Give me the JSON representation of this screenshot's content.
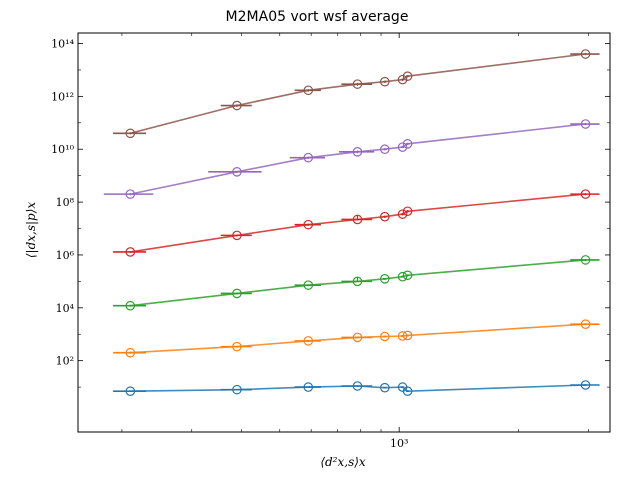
{
  "chart_data": {
    "type": "line",
    "title": "M2MA05 vort wsf average",
    "xlabel": "⟨d²x,s⟩x",
    "ylabel": "⟨|dx,s|p⟩x",
    "xscale": "log",
    "yscale": "log",
    "xlim": [
      155,
      3400
    ],
    "ylim": [
      0.2,
      250000000000000.0
    ],
    "y_ticks": [
      {
        "value": 100,
        "label": "10²"
      },
      {
        "value": 10000,
        "label": "10⁴"
      },
      {
        "value": 1000000,
        "label": "10⁶"
      },
      {
        "value": 100000000,
        "label": "10⁸"
      },
      {
        "value": 10000000000,
        "label": "10¹⁰"
      },
      {
        "value": 1000000000000,
        "label": "10¹²"
      },
      {
        "value": 100000000000000,
        "label": "10¹⁴"
      }
    ],
    "x_ticks": [
      {
        "value": 1000,
        "label": "10³"
      }
    ],
    "grid": false,
    "legend": "none",
    "series": [
      {
        "color": "#1f77b4",
        "x": [
          210,
          390,
          590,
          785,
          920,
          1020,
          1050,
          2950
        ],
        "y": [
          7,
          8,
          10,
          11,
          9.5,
          10,
          7,
          12
        ],
        "xerr": [
          20,
          35,
          45,
          70,
          10,
          10,
          10,
          250
        ],
        "yerr_upper": [
          7.5,
          8.5,
          10.5,
          11.5,
          10,
          10.5,
          7.5,
          13
        ],
        "yerr_lower": [
          6.5,
          7.5,
          9.5,
          10.5,
          9,
          9.5,
          6.5,
          11
        ]
      },
      {
        "color": "#ff7f0e",
        "x": [
          210,
          390,
          590,
          785,
          920,
          1020,
          1050,
          2950
        ],
        "y": [
          200,
          340,
          560,
          760,
          820,
          860,
          900,
          2400
        ],
        "xerr": [
          20,
          35,
          45,
          70,
          10,
          10,
          10,
          250
        ],
        "yerr_upper": [
          220,
          370,
          610,
          830,
          890,
          940,
          980,
          2600
        ],
        "yerr_lower": [
          180,
          310,
          510,
          690,
          750,
          790,
          820,
          2200
        ]
      },
      {
        "color": "#2ca02c",
        "x": [
          210,
          390,
          590,
          785,
          920,
          1020,
          1050,
          2950
        ],
        "y": [
          12000,
          35000,
          72000,
          100000,
          125000,
          150000,
          170000,
          650000
        ],
        "xerr": [
          20,
          35,
          45,
          70,
          10,
          10,
          10,
          250
        ],
        "yerr_upper": [
          13000,
          38000,
          78000,
          150000,
          135000,
          165000,
          185000,
          710000
        ],
        "yerr_lower": [
          11000,
          32000,
          66000,
          95000,
          115000,
          140000,
          155000,
          600000
        ]
      },
      {
        "color": "#d62728",
        "x": [
          210,
          390,
          590,
          785,
          920,
          1020,
          1050,
          2950
        ],
        "y": [
          1300000,
          5500000,
          14000000,
          22000000,
          28000000,
          35000000,
          45000000,
          200000000
        ],
        "xerr": [
          20,
          35,
          45,
          70,
          10,
          10,
          10,
          250
        ],
        "yerr_upper": [
          1400000,
          6000000,
          15500000,
          30000000,
          31000000,
          39000000,
          50000000,
          220000000
        ],
        "yerr_lower": [
          1200000,
          5000000,
          12500000,
          20000000,
          25000000,
          31000000,
          40000000,
          180000000
        ]
      },
      {
        "color": "#9467bd",
        "x": [
          210,
          390,
          590,
          785,
          920,
          1020,
          1050,
          2950
        ],
        "y": [
          200000000,
          1400000000,
          4800000000,
          8000000000,
          10000000000,
          12000000000,
          16000000000,
          90000000000
        ],
        "xerr": [
          20,
          35,
          45,
          70,
          10,
          10,
          10,
          250
        ],
        "yerr_upper": [
          220000000,
          1550000000,
          5300000000,
          9000000000,
          11000000000,
          13500000000,
          17500000000,
          99000000000
        ],
        "yerr_lower": [
          180000000,
          1250000000,
          4300000000,
          7000000000,
          9000000000,
          11000000000,
          14500000000,
          81000000000
        ],
        "xerr_sub": [
          30,
          60,
          60,
          80,
          10,
          10,
          10,
          250
        ]
      },
      {
        "color": "#8c564b",
        "x": [
          210,
          390,
          590,
          785,
          920,
          1020,
          1050,
          2950
        ],
        "y": [
          40000000000,
          450000000000,
          1700000000000,
          2900000000000,
          3600000000000,
          4300000000000,
          5800000000000,
          40000000000000
        ],
        "xerr": [
          20,
          35,
          45,
          70,
          10,
          10,
          10,
          250
        ],
        "yerr_upper": [
          44000000000,
          500000000000,
          1900000000000,
          3300000000000,
          4000000000000,
          4800000000000,
          6400000000000,
          44000000000000
        ],
        "yerr_lower": [
          36000000000,
          400000000000,
          1500000000000,
          2500000000000,
          3200000000000,
          3800000000000,
          5200000000000,
          36000000000000
        ]
      }
    ]
  }
}
